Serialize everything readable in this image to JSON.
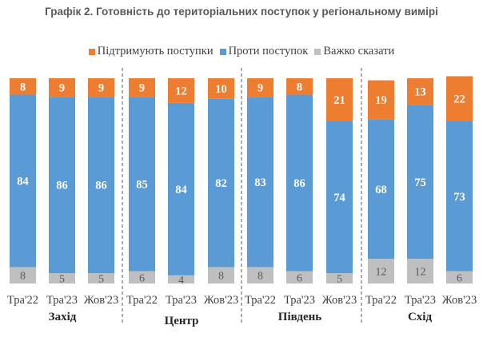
{
  "chart_data": {
    "type": "bar",
    "stacked": true,
    "title": "Графік 2. Готовність до територіальних поступок у регіональному вимірі",
    "xlabel": "",
    "ylabel": "",
    "ylim": [
      0,
      100
    ],
    "grid": false,
    "legend_position": "top",
    "groups": [
      "Захід",
      "Центр",
      "Південь",
      "Схід"
    ],
    "categories": [
      "Тра'22",
      "Тра'23",
      "Жов'23",
      "Тра'22",
      "Тра'23",
      "Жов'23",
      "Тра'22",
      "Тра'23",
      "Жов'23",
      "Тра'22",
      "Тра'23",
      "Жов'23"
    ],
    "series": [
      {
        "name": "Важко сказати",
        "color": "#bfbfbf",
        "values": [
          8,
          5,
          5,
          6,
          4,
          8,
          8,
          6,
          5,
          12,
          12,
          6
        ]
      },
      {
        "name": "Проти поступок",
        "color": "#5b9bd5",
        "values": [
          84,
          86,
          86,
          85,
          84,
          82,
          83,
          86,
          74,
          68,
          75,
          73
        ]
      },
      {
        "name": "Підтримують поступки",
        "color": "#ed7d31",
        "values": [
          8,
          9,
          9,
          9,
          12,
          10,
          9,
          8,
          21,
          19,
          13,
          22
        ]
      }
    ],
    "legend": [
      {
        "name": "Підтримують поступки",
        "color": "#ed7d31"
      },
      {
        "name": "Проти поступок",
        "color": "#5b9bd5"
      },
      {
        "name": "Важко сказати",
        "color": "#bfbfbf"
      }
    ]
  }
}
